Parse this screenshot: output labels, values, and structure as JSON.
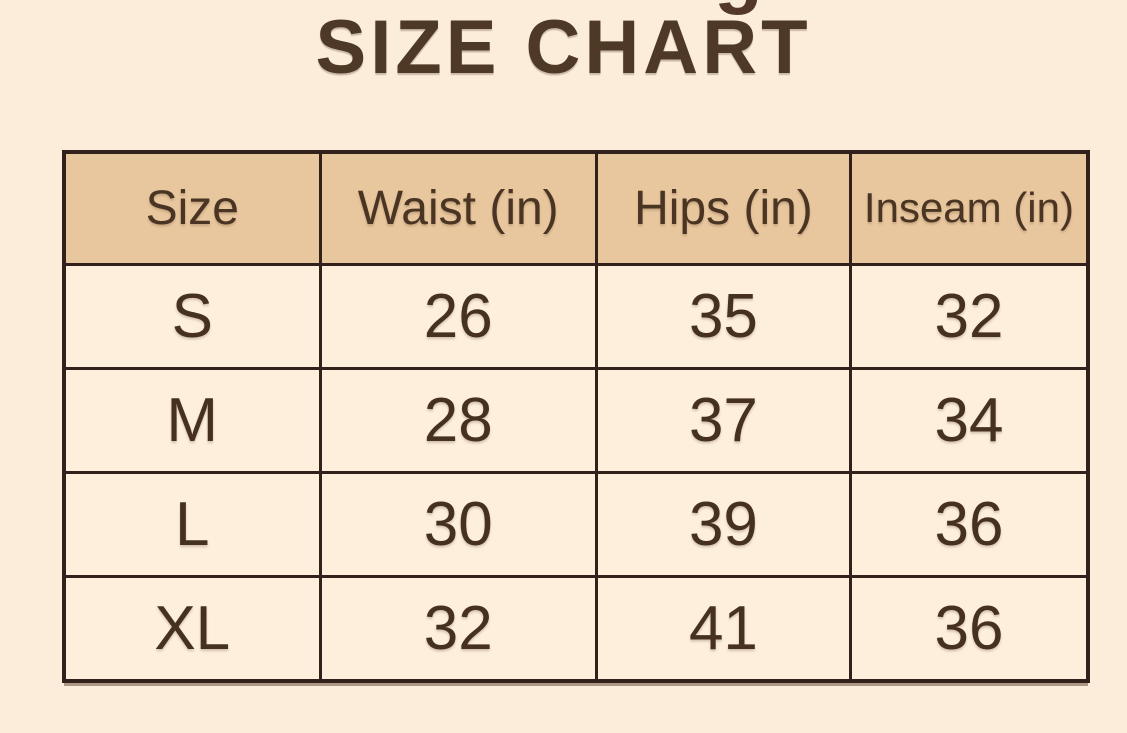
{
  "page": {
    "background_color": "#fbedd9",
    "clipped_text_fragment": "g"
  },
  "title": {
    "text": "SIZE CHART",
    "color": "#4e3826"
  },
  "table_style": {
    "header_bg": "#e9c79e",
    "cell_bg": "#fdefdc",
    "border_color": "#32211a",
    "text_color": "#463121"
  },
  "chart_data": {
    "type": "table",
    "title": "SIZE CHART",
    "columns": [
      "Size",
      "Waist (in)",
      "Hips (in)",
      "Inseam (in)"
    ],
    "rows": [
      [
        "S",
        "26",
        "35",
        "32"
      ],
      [
        "M",
        "28",
        "37",
        "34"
      ],
      [
        "L",
        "30",
        "39",
        "36"
      ],
      [
        "XL",
        "32",
        "41",
        "36"
      ]
    ]
  }
}
